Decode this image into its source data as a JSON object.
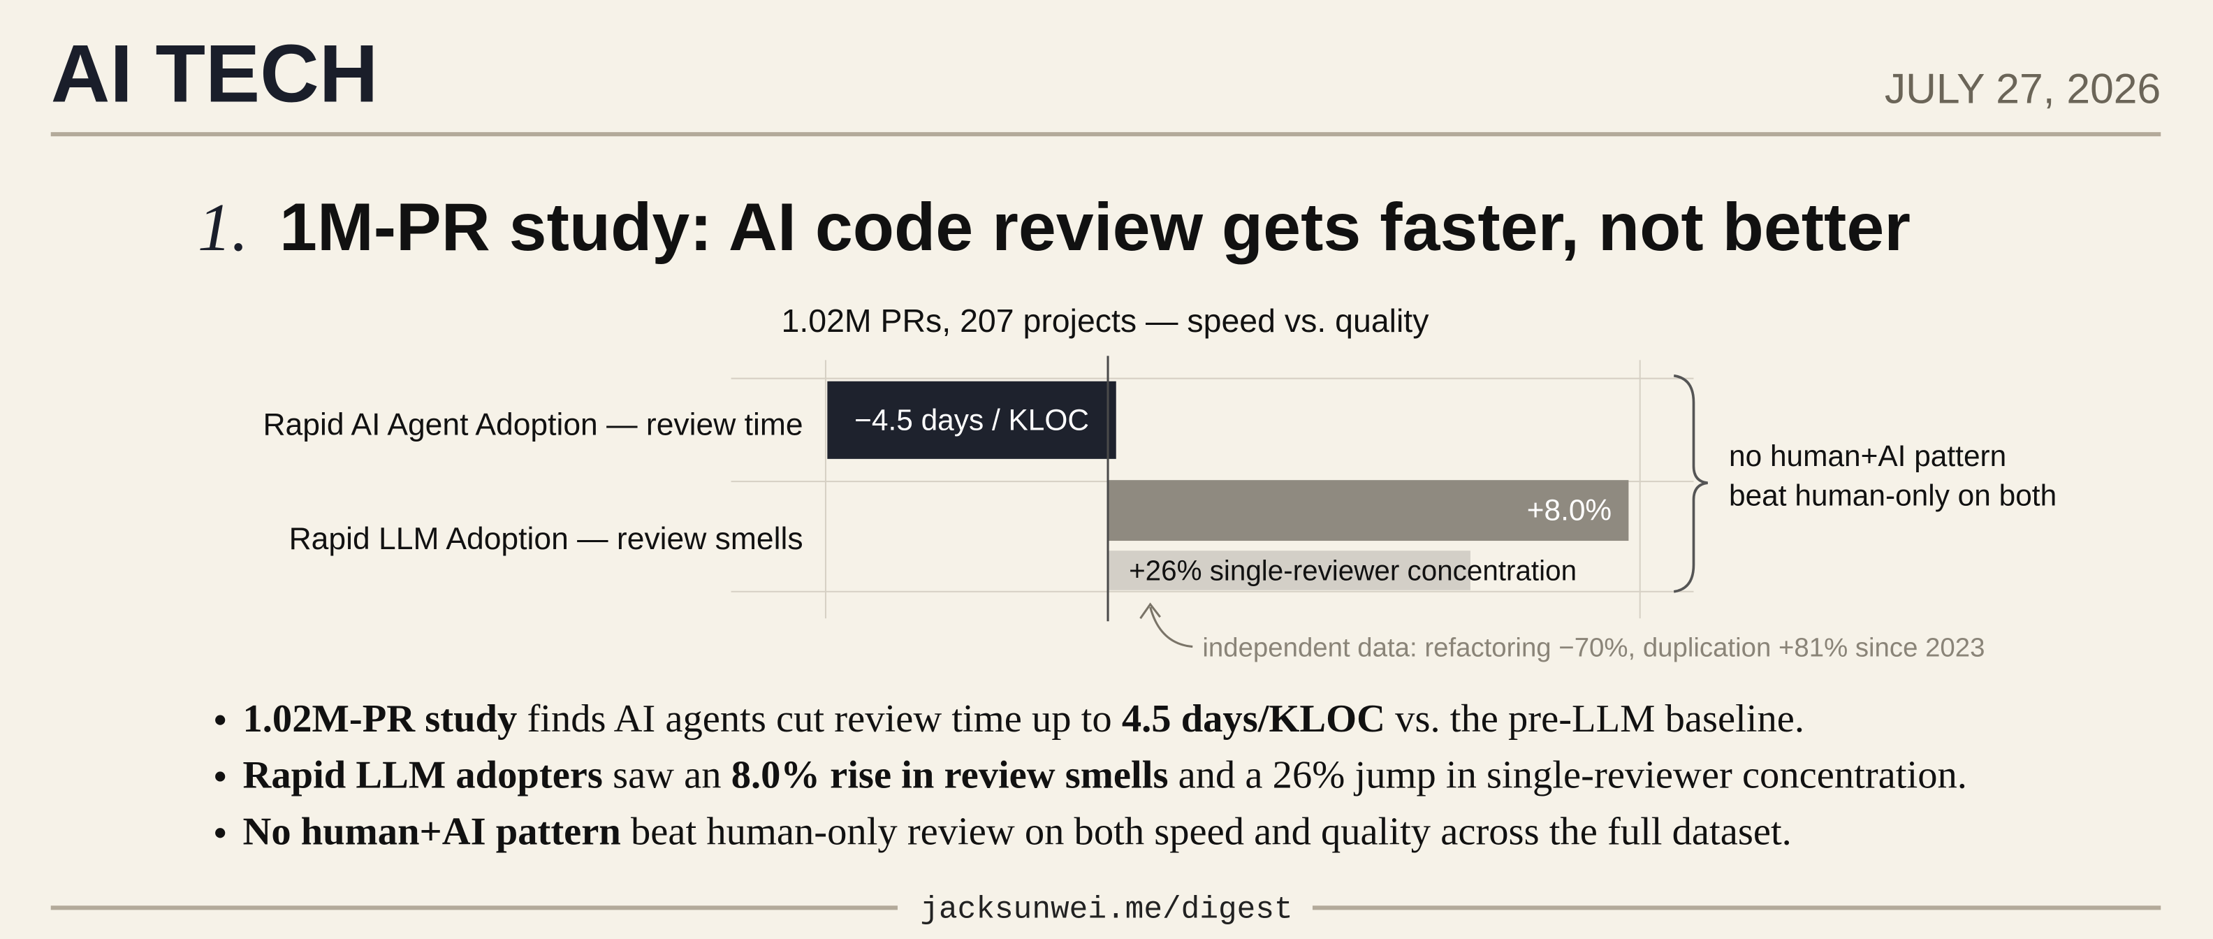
{
  "header": {
    "brand": "AI TECH",
    "date": "JULY 27, 2026"
  },
  "headline": {
    "number": "1.",
    "title": "1M-PR study: AI code review gets faster, not better"
  },
  "chart_data": {
    "type": "bar",
    "orientation": "horizontal",
    "title": "1.02M PRs, 207 projects — speed vs. quality",
    "categories": [
      "Rapid AI Agent Adoption — review time",
      "Rapid LLM Adoption — review smells"
    ],
    "bars": [
      {
        "category": 0,
        "value": -4.5,
        "value_label": "−4.5 days / KLOC",
        "color": "#1e222d",
        "xlim": [
          -6,
          9
        ]
      },
      {
        "category": 1,
        "value": 8.0,
        "value_label": "+8.0%",
        "color": "#8f8a80",
        "xlim": [
          -5.8,
          9
        ]
      },
      {
        "category": 1,
        "value": 26,
        "value_label": "+26% single-reviewer concentration",
        "color": "#d3cfc7",
        "xlim": [
          -27,
          42
        ]
      }
    ],
    "annotation": [
      "no human+AI pattern",
      "beat human-only on both"
    ],
    "note": "independent data: refactoring −70%, duplication +81% since 2023"
  },
  "bullets": [
    [
      {
        "text": "1.02M-PR study",
        "bold": true
      },
      {
        "text": " finds AI agents cut review time up to ",
        "bold": false
      },
      {
        "text": "4.5 days/KLOC",
        "bold": true
      },
      {
        "text": " vs. the pre-LLM baseline.",
        "bold": false
      }
    ],
    [
      {
        "text": "Rapid LLM adopters",
        "bold": true
      },
      {
        "text": " saw an ",
        "bold": false
      },
      {
        "text": "8.0% rise in review smells",
        "bold": true
      },
      {
        "text": " and a 26% jump in single-reviewer concentration.",
        "bold": false
      }
    ],
    [
      {
        "text": "No human+AI pattern",
        "bold": true
      },
      {
        "text": " beat human-only review on both speed and quality across the full dataset.",
        "bold": false
      }
    ]
  ],
  "footer": "jacksunwei.me/digest"
}
